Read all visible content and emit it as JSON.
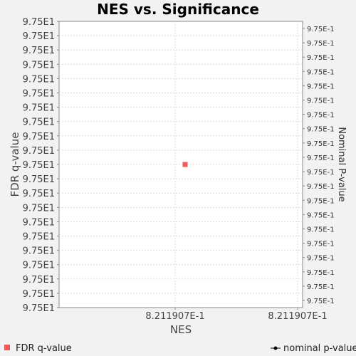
{
  "chart_data": {
    "type": "scatter",
    "title": "NES vs. Significance",
    "xlabel": "NES",
    "ylabel": "FDR q-value",
    "y2label": "Nominal P-value",
    "x_ticks": [
      "8.211907E-1",
      "8.211907E-1"
    ],
    "y_ticks": [
      "9.75E1",
      "9.75E1",
      "9.75E1",
      "9.75E1",
      "9.75E1",
      "9.75E1",
      "9.75E1",
      "9.75E1",
      "9.75E1",
      "9.75E1",
      "9.75E1",
      "9.75E1",
      "9.75E1",
      "9.75E1",
      "9.75E1",
      "9.75E1",
      "9.75E1",
      "9.75E1",
      "9.75E1",
      "9.75E1",
      "9.75E1"
    ],
    "y2_ticks": [
      "9.75E-1",
      "9.75E-1",
      "9.75E-1",
      "9.75E-1",
      "9.75E-1",
      "9.75E-1",
      "9.75E-1",
      "9.75E-1",
      "9.75E-1",
      "9.75E-1",
      "9.75E-1",
      "9.75E-1",
      "9.75E-1",
      "9.75E-1",
      "9.75E-1",
      "9.75E-1",
      "9.75E-1",
      "9.75E-1",
      "9.75E-1",
      "9.75E-1"
    ],
    "grid": true,
    "legend_position": "bottom",
    "series": [
      {
        "name": "FDR q-value",
        "marker": "square",
        "color": "#f05a5a",
        "points": [
          {
            "x": 0.8211907,
            "y": 97.5
          }
        ]
      },
      {
        "name": "nominal p-value",
        "marker": "circle-line",
        "color": "#000000",
        "points": []
      }
    ]
  }
}
